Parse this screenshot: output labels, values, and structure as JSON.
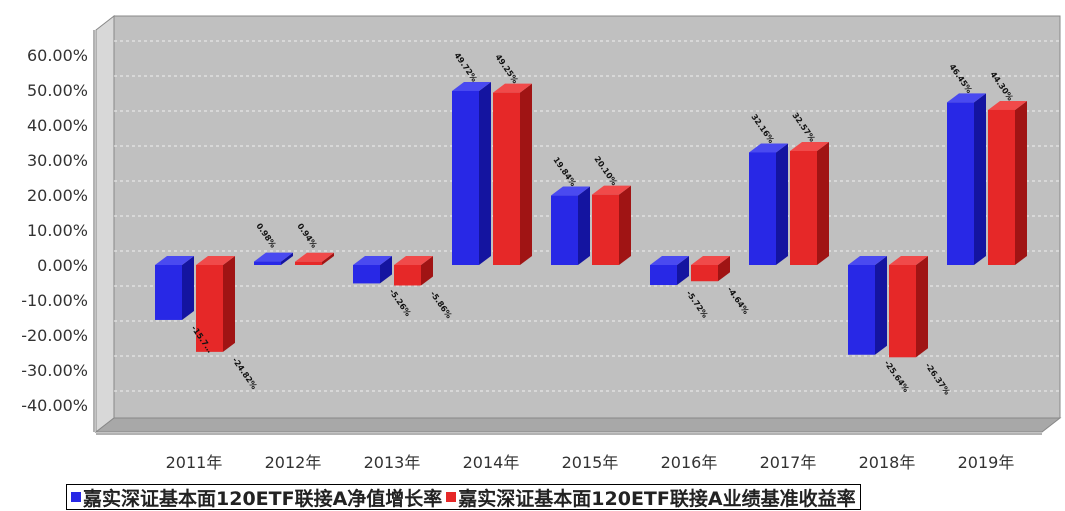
{
  "chart_data": {
    "type": "bar",
    "title": "",
    "xlabel": "",
    "ylabel": "",
    "categories": [
      "2011年",
      "2012年",
      "2013年",
      "2014年",
      "2015年",
      "2016年",
      "2017年",
      "2018年",
      "2019年"
    ],
    "y_ticks": [
      "60.00%",
      "50.00%",
      "40.00%",
      "30.00%",
      "20.00%",
      "10.00%",
      "0.00%",
      "-10.00%",
      "-20.00%",
      "-30.00%",
      "-40.00%"
    ],
    "ylim": [
      -40,
      60
    ],
    "grid": true,
    "legend_position": "bottom",
    "series": [
      {
        "name": "嘉实深证基本面120ETF联接A净值增长率",
        "color": "#2828e6",
        "values": [
          -15.7,
          0.98,
          -5.26,
          49.72,
          19.84,
          -5.72,
          32.16,
          -25.64,
          46.45
        ],
        "labels": [
          "-15.7…",
          "0.98%",
          "-5.26%",
          "49.72%",
          "19.84%",
          "-5.72%",
          "32.16%",
          "-25.64%",
          "46.45%"
        ]
      },
      {
        "name": "嘉实深证基本面120ETF联接A业绩基准收益率",
        "color": "#e62828",
        "values": [
          -24.82,
          0.94,
          -5.86,
          49.25,
          20.1,
          -4.64,
          32.57,
          -26.37,
          44.3
        ],
        "labels": [
          "-24.82%",
          "0.94%",
          "-5.86%",
          "49.25%",
          "20.10%",
          "-4.64%",
          "32.57%",
          "-26.37%",
          "44.30%"
        ]
      }
    ]
  }
}
